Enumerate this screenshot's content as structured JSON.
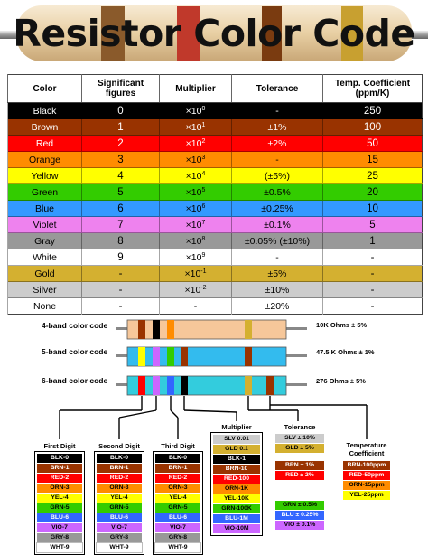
{
  "title": "Resistor Color Code",
  "table": {
    "headers": [
      "Color",
      "Significant figures",
      "Multiplier",
      "Tolerance",
      "Temp. Coefficient (ppm/K)"
    ],
    "rows": [
      {
        "color": "Black",
        "figure": "0",
        "mult_base": "×10",
        "mult_exp": "0",
        "tolerance": "-",
        "coef": "250",
        "bg": "#000000",
        "fg": "#ffffff"
      },
      {
        "color": "Brown",
        "figure": "1",
        "mult_base": "×10",
        "mult_exp": "1",
        "tolerance": "±1%",
        "coef": "100",
        "bg": "#993300",
        "fg": "#ffffff"
      },
      {
        "color": "Red",
        "figure": "2",
        "mult_base": "×10",
        "mult_exp": "2",
        "tolerance": "±2%",
        "coef": "50",
        "bg": "#ff0000",
        "fg": "#ffffff"
      },
      {
        "color": "Orange",
        "figure": "3",
        "mult_base": "×10",
        "mult_exp": "3",
        "tolerance": "-",
        "coef": "15",
        "bg": "#ff8c00",
        "fg": "#000000"
      },
      {
        "color": "Yellow",
        "figure": "4",
        "mult_base": "×10",
        "mult_exp": "4",
        "tolerance": "(±5%)",
        "coef": "25",
        "bg": "#ffff00",
        "fg": "#000000"
      },
      {
        "color": "Green",
        "figure": "5",
        "mult_base": "×10",
        "mult_exp": "5",
        "tolerance": "±0.5%",
        "coef": "20",
        "bg": "#33cc00",
        "fg": "#000000"
      },
      {
        "color": "Blue",
        "figure": "6",
        "mult_base": "×10",
        "mult_exp": "6",
        "tolerance": "±0.25%",
        "coef": "10",
        "bg": "#3399ff",
        "fg": "#000000"
      },
      {
        "color": "Violet",
        "figure": "7",
        "mult_base": "×10",
        "mult_exp": "7",
        "tolerance": "±0.1%",
        "coef": "5",
        "bg": "#ee82ee",
        "fg": "#000000"
      },
      {
        "color": "Gray",
        "figure": "8",
        "mult_base": "×10",
        "mult_exp": "8",
        "tolerance": "±0.05% (±10%)",
        "coef": "1",
        "bg": "#999999",
        "fg": "#000000"
      },
      {
        "color": "White",
        "figure": "9",
        "mult_base": "×10",
        "mult_exp": "9",
        "tolerance": "-",
        "coef": "-",
        "bg": "#ffffff",
        "fg": "#000000"
      },
      {
        "color": "Gold",
        "figure": "-",
        "mult_base": "×10",
        "mult_exp": "-1",
        "tolerance": "±5%",
        "coef": "-",
        "bg": "#d4b030",
        "fg": "#000000"
      },
      {
        "color": "Silver",
        "figure": "-",
        "mult_base": "×10",
        "mult_exp": "-2",
        "tolerance": "±10%",
        "coef": "-",
        "bg": "#cccccc",
        "fg": "#000000"
      },
      {
        "color": "None",
        "figure": "-",
        "mult_base": "-",
        "mult_exp": "",
        "tolerance": "±20%",
        "coef": "-",
        "bg": "#ffffff",
        "fg": "#000000"
      }
    ]
  },
  "band_codes": [
    {
      "label": "4-band color code",
      "value": "10K Ohms ± 5%"
    },
    {
      "label": "5-band color code",
      "value": "47.5 K Ohms ± 1%"
    },
    {
      "label": "6-band color code",
      "value": "276 Ohms ± 5%"
    }
  ],
  "legends": [
    {
      "title": "First Digit",
      "items": [
        {
          "text": "BLK-0",
          "bg": "#000000",
          "fg": "#ffffff"
        },
        {
          "text": "BRN-1",
          "bg": "#993300",
          "fg": "#ffffff"
        },
        {
          "text": "RED-2",
          "bg": "#ff0000",
          "fg": "#ffffff"
        },
        {
          "text": "ORN-3",
          "bg": "#ff8c00",
          "fg": "#000000"
        },
        {
          "text": "YEL-4",
          "bg": "#ffff00",
          "fg": "#000000"
        },
        {
          "text": "GRN-5",
          "bg": "#33cc00",
          "fg": "#000000"
        },
        {
          "text": "BLU-6",
          "bg": "#3366ff",
          "fg": "#ffffff"
        },
        {
          "text": "VIO-7",
          "bg": "#cc66ff",
          "fg": "#000000"
        },
        {
          "text": "GRY-8",
          "bg": "#999999",
          "fg": "#000000"
        },
        {
          "text": "WHT-9",
          "bg": "#ffffff",
          "fg": "#000000"
        }
      ]
    },
    {
      "title": "Second Digit",
      "items": [
        {
          "text": "BLK-0",
          "bg": "#000000",
          "fg": "#ffffff"
        },
        {
          "text": "BRN-1",
          "bg": "#993300",
          "fg": "#ffffff"
        },
        {
          "text": "RED-2",
          "bg": "#ff0000",
          "fg": "#ffffff"
        },
        {
          "text": "ORN-3",
          "bg": "#ff8c00",
          "fg": "#000000"
        },
        {
          "text": "YEL-4",
          "bg": "#ffff00",
          "fg": "#000000"
        },
        {
          "text": "GRN-5",
          "bg": "#33cc00",
          "fg": "#000000"
        },
        {
          "text": "BLU-6",
          "bg": "#3366ff",
          "fg": "#ffffff"
        },
        {
          "text": "VIO-7",
          "bg": "#cc66ff",
          "fg": "#000000"
        },
        {
          "text": "GRY-8",
          "bg": "#999999",
          "fg": "#000000"
        },
        {
          "text": "WHT-9",
          "bg": "#ffffff",
          "fg": "#000000"
        }
      ]
    },
    {
      "title": "Third Digit",
      "items": [
        {
          "text": "BLK-0",
          "bg": "#000000",
          "fg": "#ffffff"
        },
        {
          "text": "BRN-1",
          "bg": "#993300",
          "fg": "#ffffff"
        },
        {
          "text": "RED-2",
          "bg": "#ff0000",
          "fg": "#ffffff"
        },
        {
          "text": "ORN-3",
          "bg": "#ff8c00",
          "fg": "#000000"
        },
        {
          "text": "YEL-4",
          "bg": "#ffff00",
          "fg": "#000000"
        },
        {
          "text": "GRN-5",
          "bg": "#33cc00",
          "fg": "#000000"
        },
        {
          "text": "BLU-6",
          "bg": "#3366ff",
          "fg": "#ffffff"
        },
        {
          "text": "VIO-7",
          "bg": "#cc66ff",
          "fg": "#000000"
        },
        {
          "text": "GRY-8",
          "bg": "#999999",
          "fg": "#000000"
        },
        {
          "text": "WHT-9",
          "bg": "#ffffff",
          "fg": "#000000"
        }
      ]
    },
    {
      "title": "Multiplier",
      "items": [
        {
          "text": "SLV 0.01",
          "bg": "#cccccc",
          "fg": "#000000"
        },
        {
          "text": "GLD 0.1",
          "bg": "#d4b030",
          "fg": "#000000"
        },
        {
          "text": "BLK-1",
          "bg": "#000000",
          "fg": "#ffffff"
        },
        {
          "text": "BRN-10",
          "bg": "#993300",
          "fg": "#ffffff"
        },
        {
          "text": "RED-100",
          "bg": "#ff0000",
          "fg": "#ffffff"
        },
        {
          "text": "ORN-1K",
          "bg": "#ff8c00",
          "fg": "#000000"
        },
        {
          "text": "YEL-10K",
          "bg": "#ffff00",
          "fg": "#000000"
        },
        {
          "text": "GRN-100K",
          "bg": "#33cc00",
          "fg": "#000000"
        },
        {
          "text": "BLU-1M",
          "bg": "#3366ff",
          "fg": "#ffffff"
        },
        {
          "text": "VIO-10M",
          "bg": "#cc66ff",
          "fg": "#000000"
        }
      ]
    },
    {
      "title": "Tolerance",
      "items": [
        {
          "text": "SLV ± 10%",
          "bg": "#cccccc",
          "fg": "#000000"
        },
        {
          "text": "GLD ± 5%",
          "bg": "#d4b030",
          "fg": "#000000"
        },
        {
          "text": "BRN ± 1%",
          "bg": "#993300",
          "fg": "#ffffff"
        },
        {
          "text": "RED ± 2%",
          "bg": "#ff0000",
          "fg": "#ffffff"
        },
        {
          "text": "GRN ± 0.5%",
          "bg": "#33cc00",
          "fg": "#000000"
        },
        {
          "text": "BLU ± 0.25%",
          "bg": "#3366ff",
          "fg": "#ffffff"
        },
        {
          "text": "VIO ± 0.1%",
          "bg": "#cc66ff",
          "fg": "#000000"
        }
      ]
    },
    {
      "title": "Temperature Coefficient",
      "items": [
        {
          "text": "BRN-100ppm",
          "bg": "#993300",
          "fg": "#ffffff"
        },
        {
          "text": "RED-50ppm",
          "bg": "#ff0000",
          "fg": "#ffffff"
        },
        {
          "text": "ORN-15ppm",
          "bg": "#ff8c00",
          "fg": "#000000"
        },
        {
          "text": "YEL-25ppm",
          "bg": "#ffff00",
          "fg": "#000000"
        }
      ]
    }
  ],
  "colors": {
    "resistor_body_4band": "#f6c79a",
    "resistor_body_5band": "#33bbee",
    "resistor_body_6band": "#33ccdd",
    "lead_wire": "#888888"
  }
}
